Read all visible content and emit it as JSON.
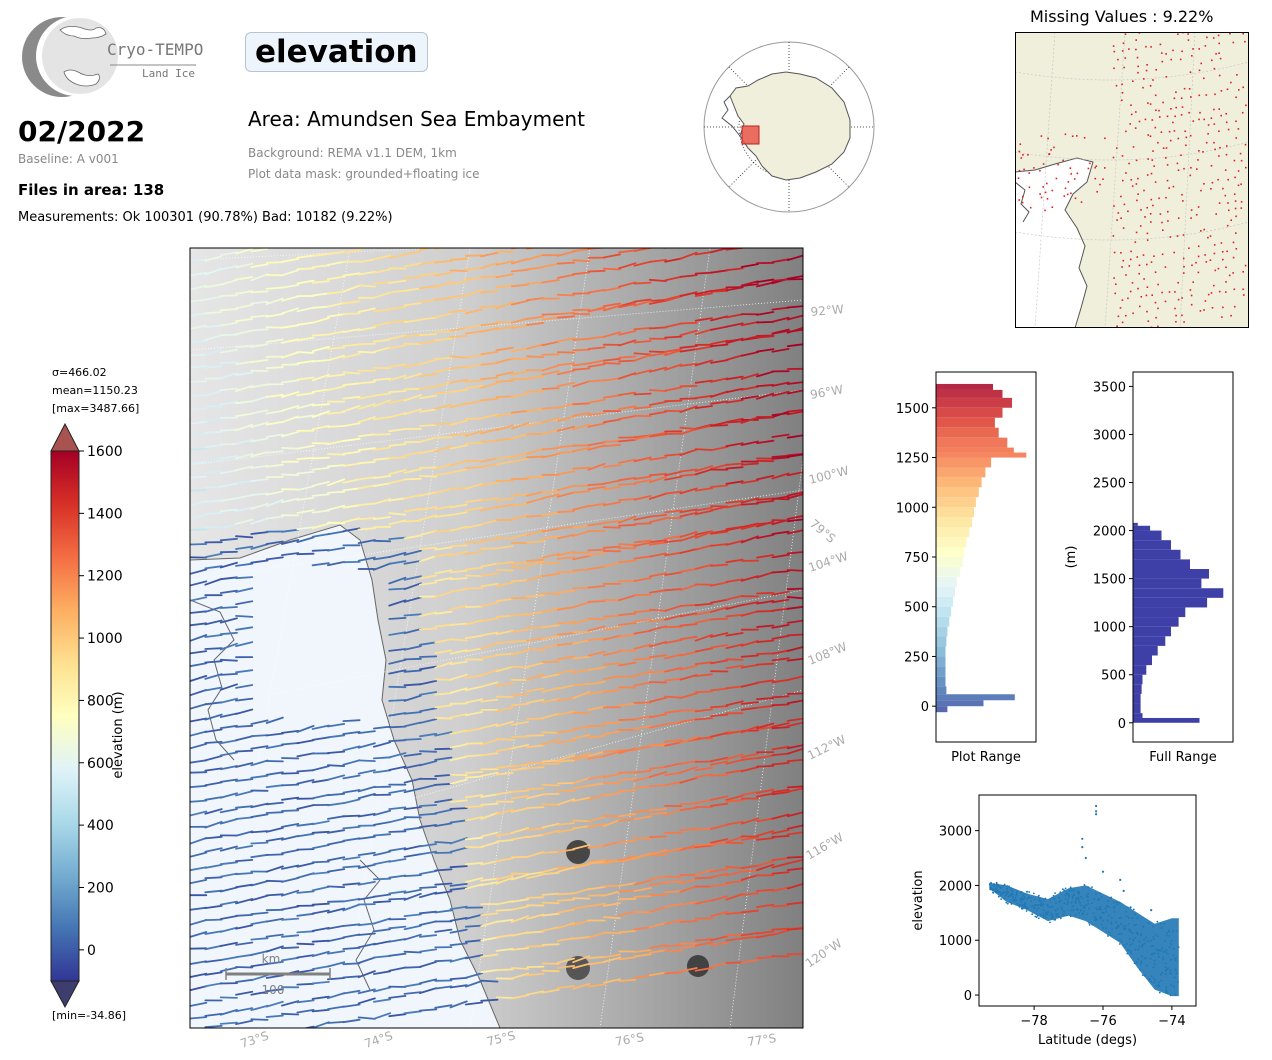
{
  "header": {
    "logo_name": "Cryo-TEMPO",
    "logo_sub": "Land Ice",
    "date": "02/2022",
    "baseline": "Baseline: A v001",
    "files": "Files in area: 138",
    "measurements": "Measurements: Ok 100301 (90.78%) Bad: 10182 (9.22%)",
    "variable": "elevation",
    "area": "Area: Amundsen Sea Embayment",
    "background": "Background: REMA v1.1 DEM, 1km",
    "mask": "Plot data mask: grounded+floating ice"
  },
  "missing_title": "Missing Values : 9.22%",
  "colorbar": {
    "stats": [
      "σ=466.02",
      "mean=1150.23",
      "[max=3487.66]"
    ],
    "min_label": "[min=-34.86]",
    "label": "elevation (m)",
    "ticks": [
      "1600",
      "1400",
      "1200",
      "1000",
      "800",
      "600",
      "400",
      "200",
      "0"
    ],
    "colors": [
      "#313695",
      "#4575b4",
      "#74add1",
      "#abd9e9",
      "#e0f3f8",
      "#ffffbf",
      "#fee090",
      "#fdae61",
      "#f46d43",
      "#d73027",
      "#a50026"
    ]
  },
  "map": {
    "lon_labels": [
      "92°W",
      "96°W",
      "100°W",
      "104°W",
      "108°W",
      "112°W",
      "116°W",
      "120°W"
    ],
    "lat_labels": [
      "73°S",
      "74°S",
      "75°S",
      "76°S",
      "77°S"
    ],
    "inner_lat_label": "79°S",
    "scalebar_unit": "km",
    "scalebar_value": "100"
  },
  "chart_data": [
    {
      "type": "bar",
      "orientation": "horizontal",
      "title": "",
      "xlabel": "Plot Range",
      "ylabel": "",
      "ylim": [
        -180,
        1680
      ],
      "yticks": [
        0,
        250,
        500,
        750,
        1000,
        1250,
        1500
      ],
      "bins": [
        {
          "y": -30,
          "count": 12
        },
        {
          "y": 0,
          "count": 50
        },
        {
          "y": 30,
          "count": 83
        },
        {
          "y": 60,
          "count": 11
        },
        {
          "y": 100,
          "count": 10
        },
        {
          "y": 150,
          "count": 10
        },
        {
          "y": 200,
          "count": 10
        },
        {
          "y": 250,
          "count": 10
        },
        {
          "y": 300,
          "count": 11
        },
        {
          "y": 350,
          "count": 12
        },
        {
          "y": 400,
          "count": 14
        },
        {
          "y": 450,
          "count": 16
        },
        {
          "y": 500,
          "count": 18
        },
        {
          "y": 550,
          "count": 20
        },
        {
          "y": 600,
          "count": 22
        },
        {
          "y": 650,
          "count": 25
        },
        {
          "y": 700,
          "count": 28
        },
        {
          "y": 750,
          "count": 30
        },
        {
          "y": 800,
          "count": 32
        },
        {
          "y": 850,
          "count": 35
        },
        {
          "y": 900,
          "count": 38
        },
        {
          "y": 950,
          "count": 40
        },
        {
          "y": 1000,
          "count": 42
        },
        {
          "y": 1050,
          "count": 45
        },
        {
          "y": 1100,
          "count": 48
        },
        {
          "y": 1150,
          "count": 52
        },
        {
          "y": 1200,
          "count": 58
        },
        {
          "y": 1250,
          "count": 95
        },
        {
          "y": 1275,
          "count": 82
        },
        {
          "y": 1300,
          "count": 75
        },
        {
          "y": 1350,
          "count": 66
        },
        {
          "y": 1400,
          "count": 62
        },
        {
          "y": 1450,
          "count": 70
        },
        {
          "y": 1500,
          "count": 80
        },
        {
          "y": 1550,
          "count": 70
        },
        {
          "y": 1590,
          "count": 60
        }
      ]
    },
    {
      "type": "bar",
      "orientation": "horizontal",
      "title": "",
      "xlabel": "Full Range",
      "ylabel": "(m)",
      "ylim": [
        -200,
        3650
      ],
      "yticks": [
        0,
        500,
        1000,
        1500,
        2000,
        2500,
        3000,
        3500
      ],
      "bins": [
        {
          "y": 0,
          "count": 70
        },
        {
          "y": 50,
          "count": 10
        },
        {
          "y": 100,
          "count": 8
        },
        {
          "y": 200,
          "count": 8
        },
        {
          "y": 300,
          "count": 9
        },
        {
          "y": 400,
          "count": 10
        },
        {
          "y": 500,
          "count": 14
        },
        {
          "y": 600,
          "count": 20
        },
        {
          "y": 700,
          "count": 26
        },
        {
          "y": 800,
          "count": 34
        },
        {
          "y": 900,
          "count": 40
        },
        {
          "y": 1000,
          "count": 48
        },
        {
          "y": 1100,
          "count": 55
        },
        {
          "y": 1200,
          "count": 78
        },
        {
          "y": 1300,
          "count": 95
        },
        {
          "y": 1400,
          "count": 72
        },
        {
          "y": 1500,
          "count": 80
        },
        {
          "y": 1600,
          "count": 60
        },
        {
          "y": 1700,
          "count": 50
        },
        {
          "y": 1800,
          "count": 40
        },
        {
          "y": 1900,
          "count": 30
        },
        {
          "y": 2000,
          "count": 18
        },
        {
          "y": 2050,
          "count": 5
        }
      ]
    },
    {
      "type": "scatter",
      "title": "",
      "xlabel": "Latitude (degs)",
      "ylabel": "elevation",
      "xlim": [
        -79.6,
        -73.3
      ],
      "ylim": [
        -200,
        3650
      ],
      "xticks": [
        -78,
        -76,
        -74
      ],
      "xtick_labels": [
        "−78",
        "−76",
        "−74"
      ],
      "yticks": [
        0,
        1000,
        2000,
        3000
      ],
      "band_upper": [
        [
          -79.3,
          2050
        ],
        [
          -78.8,
          2000
        ],
        [
          -78.2,
          1850
        ],
        [
          -77.6,
          1750
        ],
        [
          -77.0,
          1950
        ],
        [
          -76.5,
          2000
        ],
        [
          -76.0,
          1850
        ],
        [
          -75.5,
          1700
        ],
        [
          -75.0,
          1500
        ],
        [
          -74.5,
          1300
        ],
        [
          -74.0,
          1400
        ],
        [
          -73.8,
          1400
        ]
      ],
      "band_lower": [
        [
          -79.3,
          1950
        ],
        [
          -78.8,
          1700
        ],
        [
          -78.2,
          1550
        ],
        [
          -77.6,
          1350
        ],
        [
          -77.0,
          1450
        ],
        [
          -76.5,
          1350
        ],
        [
          -76.0,
          1150
        ],
        [
          -75.5,
          950
        ],
        [
          -75.0,
          500
        ],
        [
          -74.5,
          100
        ],
        [
          -74.0,
          -20
        ],
        [
          -73.8,
          -20
        ]
      ],
      "outliers": [
        [
          -76.2,
          3450
        ],
        [
          -76.2,
          3350
        ],
        [
          -76.2,
          3300
        ],
        [
          -76.6,
          2850
        ],
        [
          -76.6,
          2700
        ],
        [
          -76.5,
          2500
        ],
        [
          -75.5,
          2100
        ],
        [
          -75.4,
          1900
        ],
        [
          -76.0,
          2250
        ],
        [
          -75.2,
          1600
        ],
        [
          -74.6,
          1550
        ]
      ]
    }
  ]
}
